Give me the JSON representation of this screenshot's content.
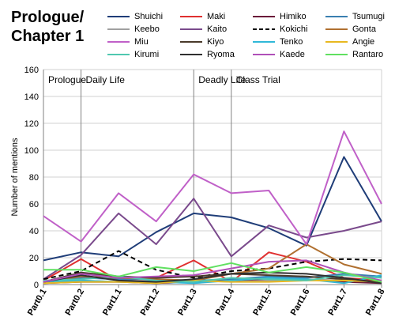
{
  "chart_data": {
    "type": "line",
    "title_lines": [
      "Prologue/",
      "Chapter 1"
    ],
    "xlabel": "",
    "ylabel": "Number of mentions",
    "ylim": [
      0,
      160
    ],
    "yticks": [
      0,
      20,
      40,
      60,
      80,
      100,
      120,
      140,
      160
    ],
    "categories": [
      "Part0.1",
      "Part0.2",
      "Part1.1",
      "Part1.2",
      "Part1.3",
      "Part1.4",
      "Part1.5",
      "Part1.6",
      "Part1.7",
      "Part1.8"
    ],
    "grid": "horizontal",
    "legend_position": "top",
    "sections": [
      {
        "label": "Prologue",
        "start": 0
      },
      {
        "label": "Daily Life",
        "start": 1
      },
      {
        "label": "Deadly Life",
        "start": 4
      },
      {
        "label": "Class Trial",
        "start": 5
      }
    ],
    "series": [
      {
        "name": "Shuichi",
        "color": "#1f3d78",
        "dash": false,
        "values": [
          18,
          24,
          21,
          39,
          53,
          50,
          42,
          29,
          95,
          47
        ]
      },
      {
        "name": "Maki",
        "color": "#e03030",
        "dash": false,
        "values": [
          3,
          19,
          3,
          5,
          18,
          2,
          24,
          17,
          5,
          3
        ]
      },
      {
        "name": "Himiko",
        "color": "#6b1a3a",
        "dash": false,
        "values": [
          1,
          2,
          2,
          1,
          2,
          3,
          4,
          4,
          2,
          1
        ]
      },
      {
        "name": "Tsumugi",
        "color": "#3a7fb0",
        "dash": false,
        "values": [
          2,
          5,
          4,
          3,
          3,
          4,
          6,
          5,
          8,
          6
        ]
      },
      {
        "name": "Keebo",
        "color": "#a0a0a0",
        "dash": false,
        "values": [
          1,
          3,
          2,
          4,
          3,
          2,
          3,
          4,
          3,
          2
        ]
      },
      {
        "name": "Kaito",
        "color": "#7a4a8c",
        "dash": false,
        "values": [
          4,
          22,
          53,
          30,
          64,
          21,
          44,
          35,
          40,
          47
        ]
      },
      {
        "name": "Kokichi",
        "color": "#000000",
        "dash": true,
        "values": [
          4,
          10,
          25,
          11,
          5,
          10,
          12,
          17,
          19,
          18
        ]
      },
      {
        "name": "Gonta",
        "color": "#b07030",
        "dash": false,
        "values": [
          2,
          6,
          5,
          4,
          3,
          8,
          12,
          30,
          15,
          8
        ]
      },
      {
        "name": "Miu",
        "color": "#c060c8",
        "dash": false,
        "values": [
          51,
          32,
          68,
          47,
          82,
          68,
          70,
          30,
          114,
          60
        ]
      },
      {
        "name": "Kiyo",
        "color": "#4a3a2a",
        "dash": false,
        "values": [
          2,
          9,
          6,
          5,
          6,
          8,
          7,
          6,
          4,
          2
        ]
      },
      {
        "name": "Tenko",
        "color": "#30b8d8",
        "dash": false,
        "values": [
          2,
          3,
          2,
          2,
          1,
          3,
          5,
          4,
          1,
          7
        ]
      },
      {
        "name": "Angie",
        "color": "#e8b820",
        "dash": false,
        "values": [
          1,
          2,
          2,
          1,
          3,
          2,
          2,
          3,
          3,
          2
        ]
      },
      {
        "name": "Kirumi",
        "color": "#50c8b0",
        "dash": false,
        "values": [
          3,
          4,
          6,
          3,
          2,
          5,
          4,
          3,
          7,
          5
        ]
      },
      {
        "name": "Ryoma",
        "color": "#303030",
        "dash": false,
        "values": [
          2,
          7,
          3,
          2,
          4,
          8,
          9,
          8,
          5,
          1
        ]
      },
      {
        "name": "Kaede",
        "color": "#b050b8",
        "dash": false,
        "values": [
          2,
          8,
          5,
          6,
          7,
          12,
          17,
          18,
          9,
          3
        ]
      },
      {
        "name": "Rantaro",
        "color": "#60e060",
        "dash": false,
        "values": [
          11,
          11,
          6,
          13,
          10,
          16,
          9,
          13,
          9,
          2
        ]
      }
    ]
  }
}
